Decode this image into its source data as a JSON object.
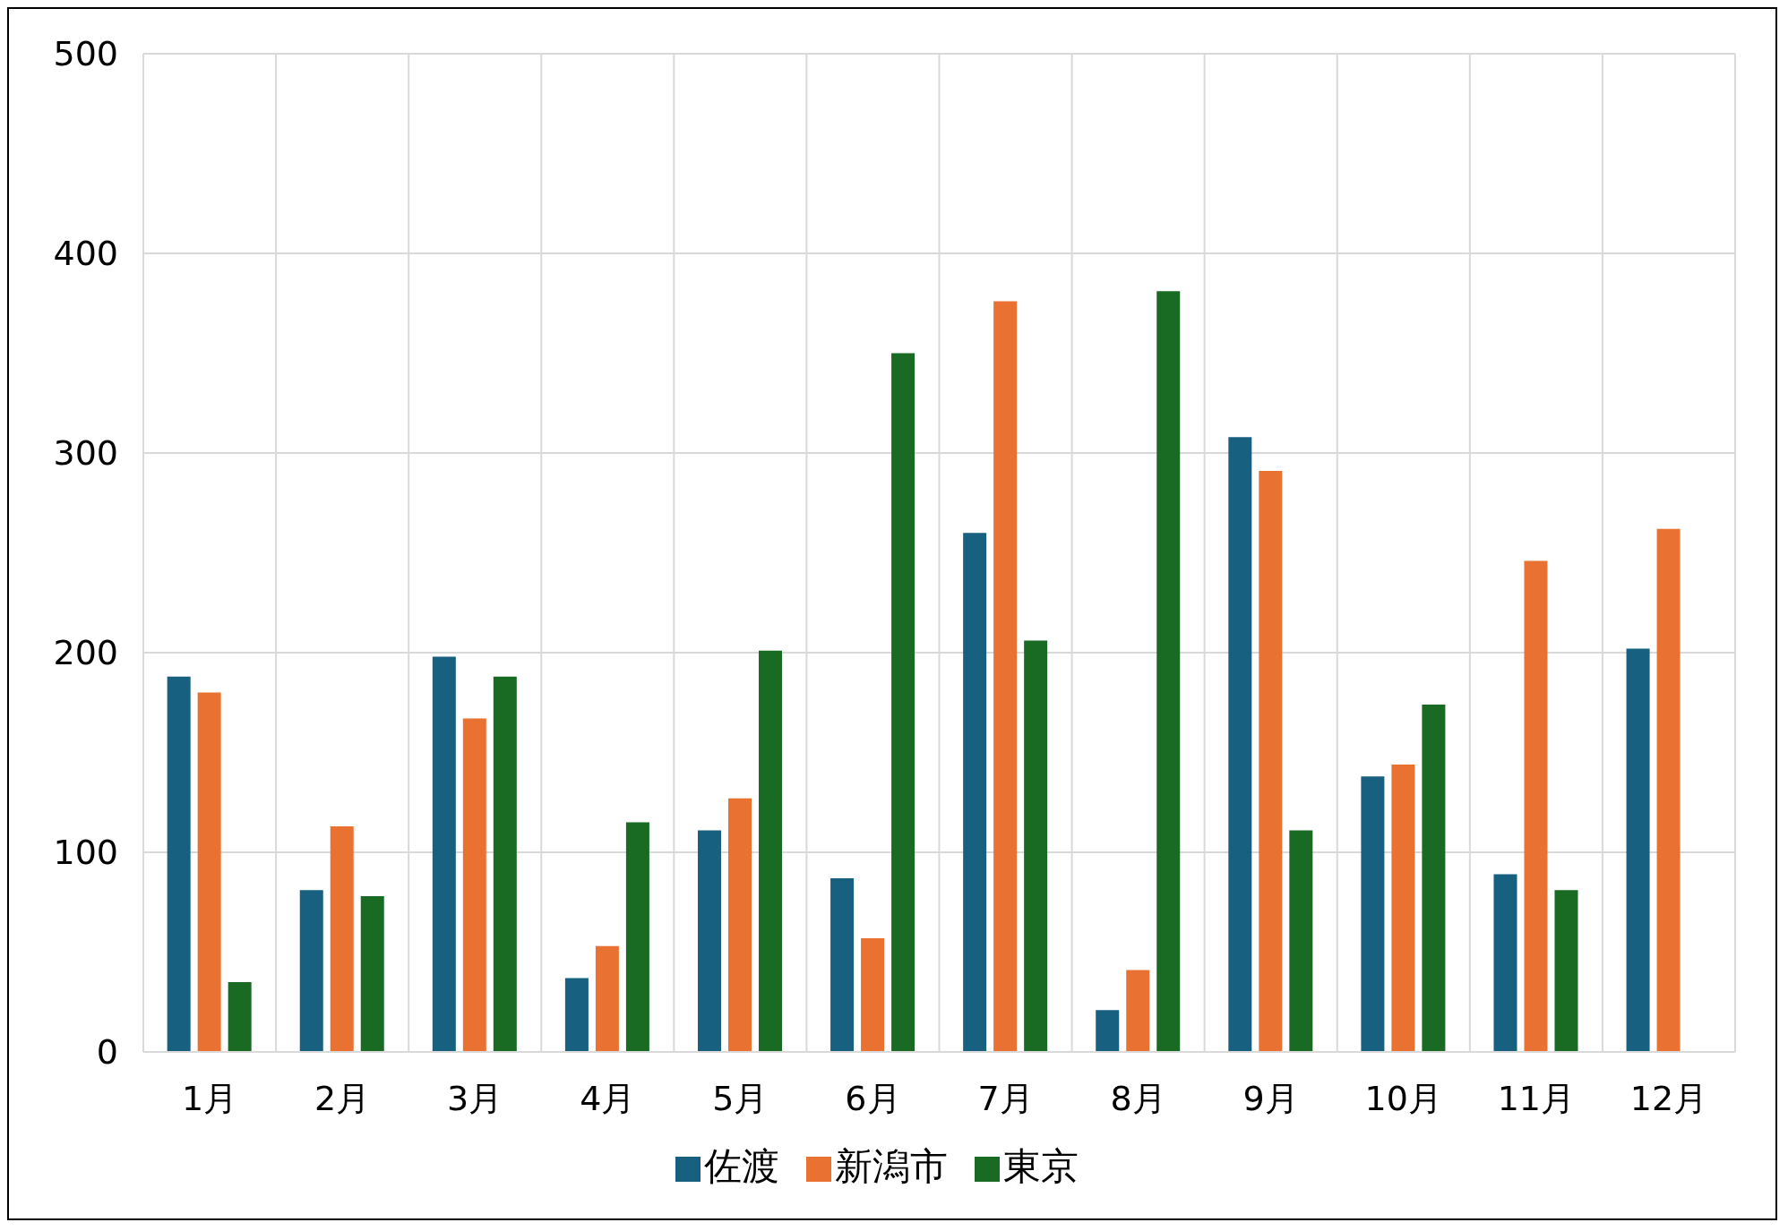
{
  "chart_data": {
    "type": "bar",
    "categories": [
      "1月",
      "2月",
      "3月",
      "4月",
      "5月",
      "6月",
      "7月",
      "8月",
      "9月",
      "10月",
      "11月",
      "12月"
    ],
    "series": [
      {
        "name": "佐渡",
        "color": "#17607f",
        "values": [
          188,
          81,
          198,
          37,
          111,
          87,
          260,
          21,
          308,
          138,
          89,
          202
        ]
      },
      {
        "name": "新潟市",
        "color": "#e97132",
        "values": [
          180,
          113,
          167,
          53,
          127,
          57,
          376,
          41,
          291,
          144,
          246,
          262
        ]
      },
      {
        "name": "東京",
        "color": "#196b24",
        "values": [
          35,
          78,
          188,
          115,
          201,
          350,
          206,
          381,
          111,
          174,
          81,
          null
        ]
      }
    ],
    "ylim": [
      0,
      500
    ],
    "yticks": [
      0,
      100,
      200,
      300,
      400,
      500
    ],
    "grid": true,
    "legend": "bottom"
  }
}
